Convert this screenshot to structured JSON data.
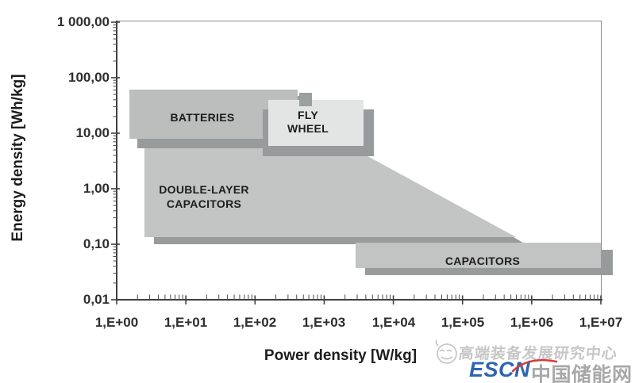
{
  "chart_data": {
    "type": "area",
    "title": "",
    "xlabel": "Power density [W/kg]",
    "ylabel": "Energy density [Wh/kg]",
    "x_scale": "log",
    "y_scale": "log",
    "xlim": [
      1,
      10000000
    ],
    "ylim": [
      0.01,
      1000
    ],
    "grid": false,
    "x_tick_labels": [
      "1,E+00",
      "1,E+01",
      "1,E+02",
      "1,E+03",
      "1,E+04",
      "1,E+05",
      "1,E+06",
      "1,E+07"
    ],
    "y_tick_labels": [
      "1 000,00",
      "100,00",
      "10,00",
      "1,00",
      "0,10",
      "0,01"
    ],
    "regions": [
      {
        "label": "BATTERIES",
        "shape": "rectangle",
        "power_range_w_per_kg": [
          1.5,
          420
        ],
        "energy_range_wh_per_kg": [
          8,
          60
        ]
      },
      {
        "label": "FLY WHEEL",
        "shape": "rectangle",
        "power_range_w_per_kg": [
          160,
          3700
        ],
        "energy_range_wh_per_kg": [
          6,
          39
        ]
      },
      {
        "label": "DOUBLE-LAYER CAPACITORS",
        "shape": "polygon",
        "power_range_w_per_kg": [
          2.5,
          600000
        ],
        "energy_range_wh_per_kg": [
          0.13,
          5.5
        ],
        "note": "upper boundary flat at ~5.5 Wh/kg up to ~2000 W/kg, then slopes down to ~0.13 Wh/kg at ~600000 W/kg"
      },
      {
        "label": "CAPACITORS",
        "shape": "rectangle",
        "power_range_w_per_kg": [
          3000,
          10000000
        ],
        "energy_range_wh_per_kg": [
          0.04,
          0.11
        ]
      }
    ]
  },
  "region_labels": {
    "batteries": "BATTERIES",
    "flywheel_line1": "FLY",
    "flywheel_line2": "WHEEL",
    "dlc_line1": "DOUBLE-LAYER",
    "dlc_line2": "CAPACITORS",
    "capacitors": "CAPACITORS"
  },
  "watermark": {
    "center_name": "高端装备发展研究中心",
    "logo_latin": "ESCN",
    "logo_cn": "中国储能网",
    "logo_latin_color": "#2d64b4",
    "logo_cn_color": "#a8a8a8",
    "center_name_color": "#c6c6c6",
    "accent_color": "#d43c3c"
  },
  "colors": {
    "box_fill": "#bcbebe",
    "flywheel_fill": "#e3e4e4",
    "shadow": "#979b9b",
    "axis": "#3f3f3f",
    "frame": "#8a8a8a",
    "background": "#ffffff"
  }
}
